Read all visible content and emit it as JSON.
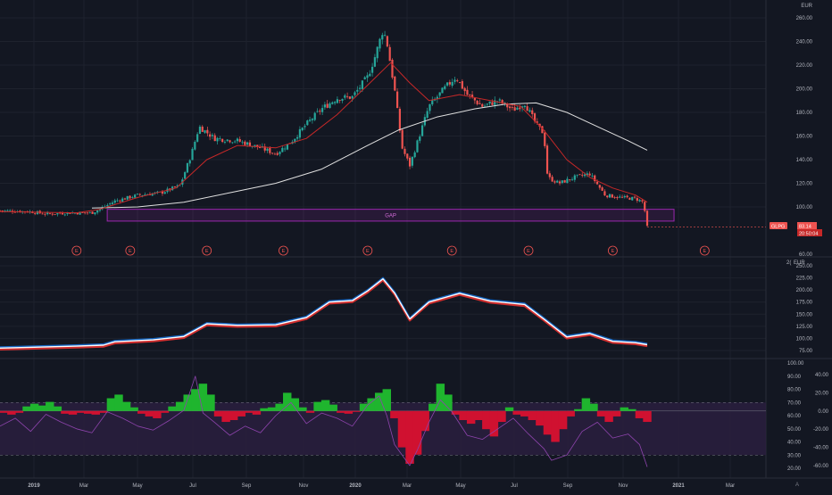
{
  "colors": {
    "background": "#131722",
    "grid": "#1e222d",
    "separator": "#2a2e39",
    "axis_text": "#b2b5be",
    "candle_up": "#26a69a",
    "candle_down": "#ef5350",
    "ma_fast": "#c62828",
    "ma_slow": "#e0e0e0",
    "gap_box": "#9c27b0",
    "rsi_line": "#8e44ad",
    "rsi_band": "#2a1e3e",
    "hist_up": "#1fb52e",
    "hist_down": "#d01130",
    "line2_a": "#d32f2f",
    "line2_b": "#ffffff",
    "line2_c": "#1565c0"
  },
  "main_panel": {
    "currency": "EUR",
    "symbol_tag": "GLPG",
    "last_price": "83.14",
    "countdown": "20:50:04",
    "gap_label": "GAP",
    "earnings_marker": "E"
  },
  "panel2": {
    "currency": "EUR",
    "corner_label": "2("
  },
  "axis": {
    "months": [
      "2019",
      "Mar",
      "May",
      "Jul",
      "Sep",
      "Nov",
      "2020",
      "Mar",
      "May",
      "Jul",
      "Sep",
      "Nov",
      "2021",
      "Mar"
    ],
    "corner": "A"
  },
  "chart_data": [
    {
      "type": "candlestick",
      "title": "",
      "currency": "EUR",
      "yticks": [
        "260.00",
        "240.00",
        "220.00",
        "200.00",
        "180.00",
        "160.00",
        "140.00",
        "120.00",
        "100.00",
        "60.00"
      ],
      "ylim": [
        60,
        260
      ],
      "close_path": [
        [
          0.0,
          97
        ],
        [
          0.04,
          96
        ],
        [
          0.06,
          94
        ],
        [
          0.09,
          95
        ],
        [
          0.12,
          95
        ],
        [
          0.13,
          98
        ],
        [
          0.15,
          105
        ],
        [
          0.18,
          110
        ],
        [
          0.21,
          112
        ],
        [
          0.235,
          118
        ],
        [
          0.25,
          145
        ],
        [
          0.26,
          168
        ],
        [
          0.28,
          158
        ],
        [
          0.31,
          156
        ],
        [
          0.34,
          150
        ],
        [
          0.36,
          145
        ],
        [
          0.38,
          155
        ],
        [
          0.4,
          170
        ],
        [
          0.42,
          183
        ],
        [
          0.44,
          192
        ],
        [
          0.46,
          193
        ],
        [
          0.48,
          210
        ],
        [
          0.49,
          228
        ],
        [
          0.5,
          250
        ],
        [
          0.505,
          240
        ],
        [
          0.515,
          200
        ],
        [
          0.525,
          150
        ],
        [
          0.535,
          135
        ],
        [
          0.545,
          155
        ],
        [
          0.56,
          185
        ],
        [
          0.58,
          200
        ],
        [
          0.595,
          210
        ],
        [
          0.61,
          195
        ],
        [
          0.63,
          185
        ],
        [
          0.65,
          190
        ],
        [
          0.67,
          182
        ],
        [
          0.685,
          188
        ],
        [
          0.7,
          170
        ],
        [
          0.71,
          162
        ],
        [
          0.715,
          125
        ],
        [
          0.73,
          120
        ],
        [
          0.75,
          125
        ],
        [
          0.77,
          128
        ],
        [
          0.79,
          110
        ],
        [
          0.81,
          108
        ],
        [
          0.83,
          107
        ],
        [
          0.84,
          104
        ],
        [
          0.845,
          83
        ]
      ],
      "ma_fast": [
        [
          0.0,
          96
        ],
        [
          0.1,
          95
        ],
        [
          0.13,
          98
        ],
        [
          0.18,
          108
        ],
        [
          0.23,
          116
        ],
        [
          0.27,
          140
        ],
        [
          0.31,
          152
        ],
        [
          0.36,
          150
        ],
        [
          0.4,
          158
        ],
        [
          0.44,
          178
        ],
        [
          0.48,
          203
        ],
        [
          0.51,
          222
        ],
        [
          0.535,
          205
        ],
        [
          0.56,
          190
        ],
        [
          0.6,
          195
        ],
        [
          0.64,
          190
        ],
        [
          0.68,
          185
        ],
        [
          0.71,
          165
        ],
        [
          0.74,
          140
        ],
        [
          0.77,
          125
        ],
        [
          0.8,
          116
        ],
        [
          0.83,
          110
        ],
        [
          0.845,
          104
        ]
      ],
      "ma_slow": [
        [
          0.12,
          99
        ],
        [
          0.18,
          100
        ],
        [
          0.24,
          104
        ],
        [
          0.3,
          112
        ],
        [
          0.36,
          120
        ],
        [
          0.42,
          132
        ],
        [
          0.48,
          152
        ],
        [
          0.52,
          165
        ],
        [
          0.57,
          176
        ],
        [
          0.62,
          183
        ],
        [
          0.66,
          187
        ],
        [
          0.7,
          188
        ],
        [
          0.74,
          180
        ],
        [
          0.78,
          168
        ],
        [
          0.82,
          156
        ],
        [
          0.845,
          148
        ]
      ],
      "gap_zone": [
        88,
        98
      ],
      "earnings_positions": [
        0.1,
        0.17,
        0.27,
        0.37,
        0.48,
        0.59,
        0.69,
        0.8,
        0.92
      ]
    },
    {
      "type": "line",
      "title": "",
      "currency": "EUR",
      "yticks": [
        "250.00",
        "225.00",
        "200.00",
        "175.00",
        "150.00",
        "125.00",
        "100.00",
        "75.00"
      ],
      "ylim": [
        60,
        260
      ],
      "series": [
        {
          "values": [
            [
              0.0,
              80
            ],
            [
              0.05,
              82
            ],
            [
              0.1,
              84
            ],
            [
              0.135,
              86
            ],
            [
              0.15,
              93
            ],
            [
              0.2,
              97
            ],
            [
              0.24,
              104
            ],
            [
              0.27,
              130
            ],
            [
              0.31,
              127
            ],
            [
              0.36,
              128
            ],
            [
              0.4,
              143
            ],
            [
              0.43,
              175
            ],
            [
              0.46,
              178
            ],
            [
              0.48,
              198
            ],
            [
              0.5,
              223
            ],
            [
              0.515,
              194
            ],
            [
              0.535,
              140
            ],
            [
              0.56,
              175
            ],
            [
              0.6,
              193
            ],
            [
              0.64,
              177
            ],
            [
              0.685,
              170
            ],
            [
              0.71,
              140
            ],
            [
              0.74,
              103
            ],
            [
              0.77,
              110
            ],
            [
              0.8,
              94
            ],
            [
              0.83,
              91
            ],
            [
              0.845,
              87
            ]
          ]
        }
      ]
    },
    {
      "type": "histogram",
      "title": "",
      "yticks_right": [
        "40.00",
        "20.00",
        "0.00",
        "-20.00",
        "-40.00",
        "-60.00"
      ],
      "yticks_left": [
        "100.00",
        "90.00",
        "80.00",
        "70.00",
        "60.00",
        "50.00",
        "40.00",
        "30.00",
        "20.00"
      ],
      "ylim": [
        -70,
        50
      ],
      "rsi_lim": [
        15,
        100
      ],
      "rsi_band": [
        30,
        70
      ],
      "histogram": [
        [
          0.005,
          -2
        ],
        [
          0.015,
          -4
        ],
        [
          0.025,
          -2
        ],
        [
          0.035,
          5
        ],
        [
          0.045,
          8
        ],
        [
          0.055,
          6
        ],
        [
          0.065,
          10
        ],
        [
          0.075,
          5
        ],
        [
          0.085,
          -3
        ],
        [
          0.095,
          -4
        ],
        [
          0.105,
          -2
        ],
        [
          0.115,
          -3
        ],
        [
          0.125,
          -4
        ],
        [
          0.135,
          -2
        ],
        [
          0.145,
          14
        ],
        [
          0.155,
          18
        ],
        [
          0.165,
          10
        ],
        [
          0.175,
          4
        ],
        [
          0.185,
          -3
        ],
        [
          0.195,
          -6
        ],
        [
          0.205,
          -8
        ],
        [
          0.215,
          -2
        ],
        [
          0.225,
          5
        ],
        [
          0.235,
          10
        ],
        [
          0.245,
          18
        ],
        [
          0.255,
          24
        ],
        [
          0.265,
          30
        ],
        [
          0.275,
          18
        ],
        [
          0.285,
          -6
        ],
        [
          0.295,
          -12
        ],
        [
          0.305,
          -10
        ],
        [
          0.315,
          -6
        ],
        [
          0.325,
          -2
        ],
        [
          0.335,
          -4
        ],
        [
          0.345,
          3
        ],
        [
          0.355,
          4
        ],
        [
          0.365,
          8
        ],
        [
          0.375,
          20
        ],
        [
          0.385,
          14
        ],
        [
          0.395,
          4
        ],
        [
          0.405,
          -2
        ],
        [
          0.415,
          10
        ],
        [
          0.425,
          12
        ],
        [
          0.435,
          7
        ],
        [
          0.445,
          -2
        ],
        [
          0.455,
          -3
        ],
        [
          0.465,
          -1
        ],
        [
          0.475,
          8
        ],
        [
          0.485,
          14
        ],
        [
          0.495,
          20
        ],
        [
          0.505,
          24
        ],
        [
          0.515,
          -8
        ],
        [
          0.525,
          -40
        ],
        [
          0.535,
          -58
        ],
        [
          0.545,
          -48
        ],
        [
          0.555,
          -22
        ],
        [
          0.565,
          8
        ],
        [
          0.575,
          30
        ],
        [
          0.585,
          18
        ],
        [
          0.595,
          -4
        ],
        [
          0.605,
          -10
        ],
        [
          0.615,
          -14
        ],
        [
          0.625,
          -10
        ],
        [
          0.635,
          -20
        ],
        [
          0.645,
          -28
        ],
        [
          0.655,
          -12
        ],
        [
          0.665,
          4
        ],
        [
          0.675,
          -4
        ],
        [
          0.685,
          -6
        ],
        [
          0.695,
          -10
        ],
        [
          0.705,
          -16
        ],
        [
          0.715,
          -26
        ],
        [
          0.725,
          -34
        ],
        [
          0.735,
          -20
        ],
        [
          0.745,
          -6
        ],
        [
          0.755,
          2
        ],
        [
          0.765,
          14
        ],
        [
          0.775,
          8
        ],
        [
          0.785,
          -6
        ],
        [
          0.795,
          -12
        ],
        [
          0.805,
          -6
        ],
        [
          0.815,
          4
        ],
        [
          0.825,
          2
        ],
        [
          0.835,
          -8
        ],
        [
          0.845,
          -12
        ]
      ],
      "rsi": [
        [
          0.0,
          52
        ],
        [
          0.02,
          58
        ],
        [
          0.04,
          48
        ],
        [
          0.06,
          61
        ],
        [
          0.08,
          55
        ],
        [
          0.1,
          50
        ],
        [
          0.12,
          47
        ],
        [
          0.14,
          63
        ],
        [
          0.16,
          58
        ],
        [
          0.18,
          52
        ],
        [
          0.2,
          49
        ],
        [
          0.22,
          56
        ],
        [
          0.24,
          64
        ],
        [
          0.255,
          90
        ],
        [
          0.265,
          62
        ],
        [
          0.28,
          55
        ],
        [
          0.3,
          45
        ],
        [
          0.32,
          52
        ],
        [
          0.34,
          47
        ],
        [
          0.36,
          60
        ],
        [
          0.38,
          70
        ],
        [
          0.4,
          54
        ],
        [
          0.42,
          62
        ],
        [
          0.44,
          58
        ],
        [
          0.46,
          52
        ],
        [
          0.48,
          68
        ],
        [
          0.495,
          75
        ],
        [
          0.505,
          60
        ],
        [
          0.515,
          38
        ],
        [
          0.525,
          30
        ],
        [
          0.535,
          22
        ],
        [
          0.545,
          34
        ],
        [
          0.56,
          55
        ],
        [
          0.575,
          72
        ],
        [
          0.59,
          63
        ],
        [
          0.61,
          45
        ],
        [
          0.63,
          42
        ],
        [
          0.65,
          50
        ],
        [
          0.67,
          58
        ],
        [
          0.69,
          46
        ],
        [
          0.71,
          35
        ],
        [
          0.72,
          26
        ],
        [
          0.74,
          30
        ],
        [
          0.76,
          48
        ],
        [
          0.78,
          55
        ],
        [
          0.8,
          43
        ],
        [
          0.82,
          46
        ],
        [
          0.835,
          38
        ],
        [
          0.845,
          21
        ]
      ]
    }
  ]
}
